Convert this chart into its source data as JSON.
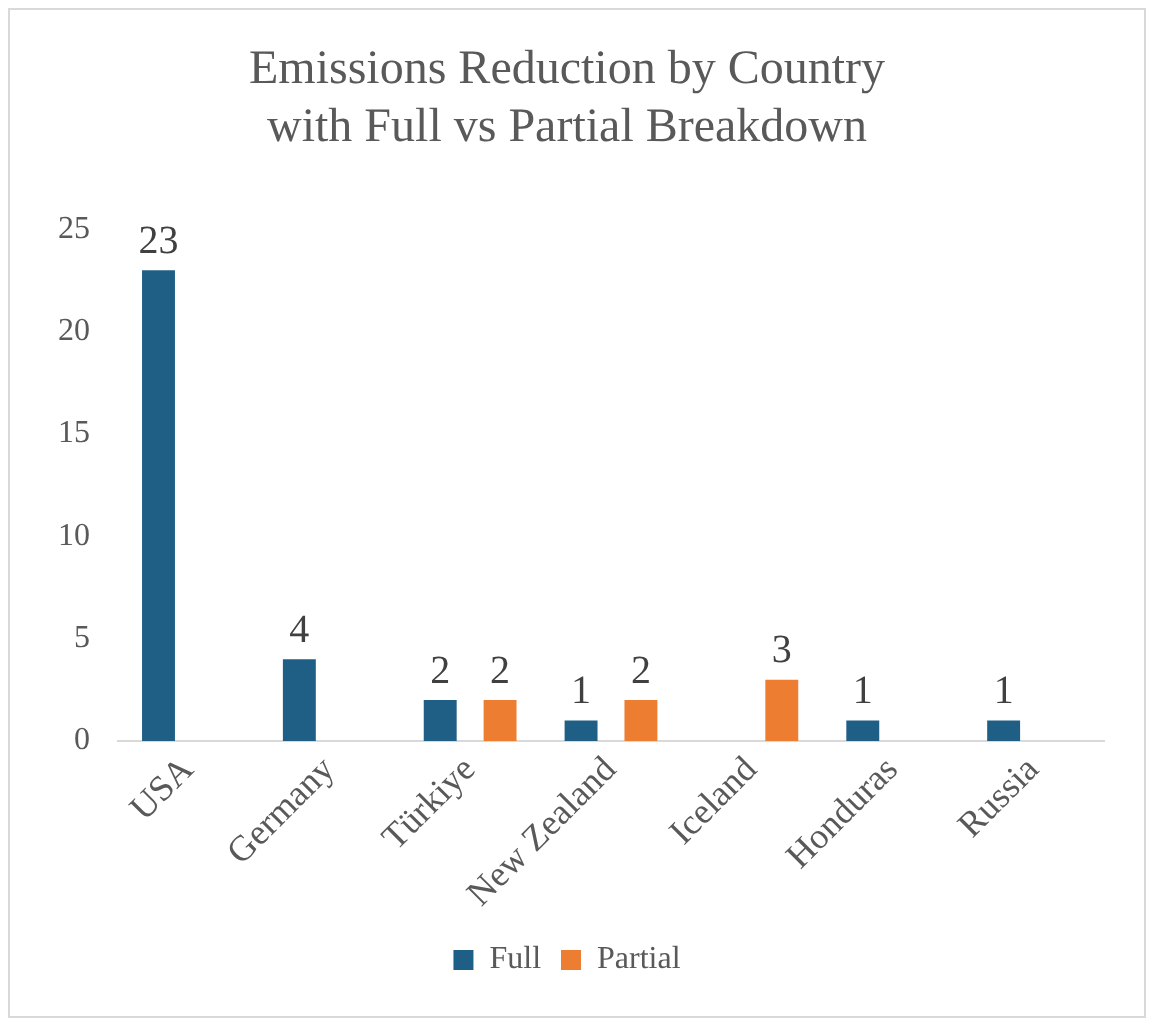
{
  "chart_data": {
    "type": "bar",
    "title": "Emissions Reduction by Country\nwith Full vs Partial Breakdown",
    "categories": [
      "USA",
      "Germany",
      "Türkiye",
      "New Zealand",
      "Iceland",
      "Honduras",
      "Russia"
    ],
    "series": [
      {
        "name": "Full",
        "color": "#1f5f86",
        "values": [
          23,
          4,
          2,
          1,
          null,
          1,
          1
        ]
      },
      {
        "name": "Partial",
        "color": "#ed7d31",
        "values": [
          null,
          null,
          2,
          2,
          3,
          null,
          null
        ]
      }
    ],
    "ylim": [
      0,
      25
    ],
    "yticks": [
      0,
      5,
      10,
      15,
      20,
      25
    ],
    "grid": false,
    "legend": "bottom",
    "data_labels": true
  }
}
